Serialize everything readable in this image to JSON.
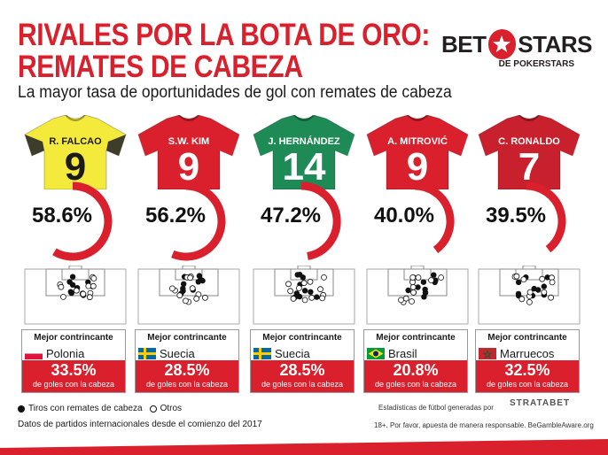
{
  "header": {
    "title_line1": "RIVALES POR LA BOTA DE ORO:",
    "title_line2": "REMATES DE CABEZA",
    "subtitle": "La mayor tasa de oportunidades de gol con remates de cabeza"
  },
  "brand": {
    "left": "BET",
    "right": "STARS",
    "sub": "DE POKERSTARS"
  },
  "colors": {
    "accent": "#d9202c",
    "gauge_track": "#ffffff"
  },
  "players": [
    {
      "name": "R. FALCAO",
      "number": "9",
      "shirt_color": "#f3ea3c",
      "sleeve_color": "#2a2a2a",
      "text_color": "#1a1a1a",
      "percent_label": "58.6%",
      "percent": 58.6,
      "box_label": "Mejor contrincante",
      "opponent": "Polonia",
      "flag": "poland",
      "opp_percent_label": "33.5%",
      "note": "de goles con la cabeza"
    },
    {
      "name": "S.W. KIM",
      "number": "9",
      "shirt_color": "#d9202c",
      "sleeve_color": "#d9202c",
      "text_color": "#ffffff",
      "percent_label": "56.2%",
      "percent": 56.2,
      "box_label": "Mejor contrincante",
      "opponent": "Suecia",
      "flag": "sweden",
      "opp_percent_label": "28.5%",
      "note": "de goles con la cabeza"
    },
    {
      "name": "J. HERNÁNDEZ",
      "number": "14",
      "shirt_color": "#1e8a55",
      "sleeve_color": "#1e8a55",
      "text_color": "#ffffff",
      "percent_label": "47.2%",
      "percent": 47.2,
      "box_label": "Mejor contrincante",
      "opponent": "Suecia",
      "flag": "sweden",
      "opp_percent_label": "28.5%",
      "note": "de goles con la cabeza"
    },
    {
      "name": "A. MITROVIĆ",
      "number": "9",
      "shirt_color": "#d9202c",
      "sleeve_color": "#d9202c",
      "text_color": "#ffffff",
      "percent_label": "40.0%",
      "percent": 40.0,
      "box_label": "Mejor contrincante",
      "opponent": "Brasil",
      "flag": "brazil",
      "opp_percent_label": "20.8%",
      "note": "de goles con la cabeza"
    },
    {
      "name": "C. RONALDO",
      "number": "7",
      "shirt_color": "#c8202c",
      "sleeve_color": "#c8202c",
      "text_color": "#ffffff",
      "percent_label": "39.5%",
      "percent": 39.5,
      "box_label": "Mejor contrincante",
      "opponent": "Marruecos",
      "flag": "morocco",
      "opp_percent_label": "32.5%",
      "note": "de goles con la cabeza"
    }
  ],
  "legend": {
    "filled": "Tiros con remates de cabeza",
    "empty": "Otros"
  },
  "footer": {
    "source": "Datos de partidos internacionales desde el comienzo del 2017",
    "stats_by": "Estadísticas de fútbol generadas por",
    "stats_logo": "STRATABET",
    "responsible": "18+. Por favor, apuesta de manera responsable. BeGambleAware.org"
  }
}
